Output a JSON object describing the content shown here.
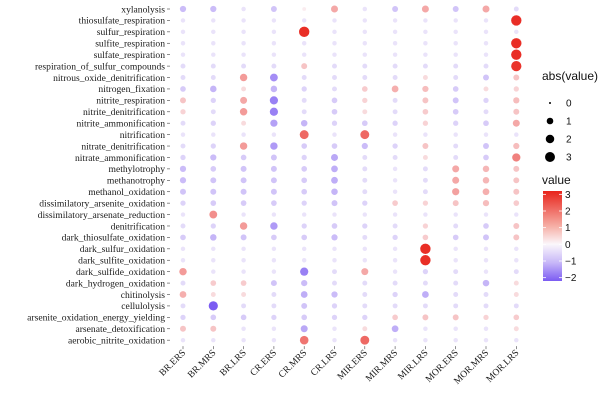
{
  "chart_data": {
    "type": "scatter",
    "subtype": "dot-matrix",
    "rows": [
      "xylanolysis",
      "thiosulfate_respiration",
      "sulfur_respiration",
      "sulfite_respiration",
      "sulfate_respiration",
      "respiration_of_sulfur_compounds",
      "nitrous_oxide_denitrification",
      "nitrogen_fixation",
      "nitrite_respiration",
      "nitrite_denitrification",
      "nitrite_ammonification",
      "nitrification",
      "nitrate_denitrification",
      "nitrate_ammonification",
      "methylotrophy",
      "methanotrophy",
      "methanol_oxidation",
      "dissimilatory_arsenite_oxidation",
      "dissimilatory_arsenate_reduction",
      "denitrification",
      "dark_thiosulfate_oxidation",
      "dark_sulfur_oxidation",
      "dark_sulfite_oxidation",
      "dark_sulfide_oxidation",
      "dark_hydrogen_oxidation",
      "chitinolysis",
      "cellulolysis",
      "arsenite_oxidation_energy_yielding",
      "arsenate_detoxification",
      "aerobic_nitrite_oxidation"
    ],
    "columns": [
      "BR.ERS",
      "BR.MRS",
      "BR.LRS",
      "CR.ERS",
      "CR.MRS",
      "CR.LRS",
      "MIR.ERS",
      "MIR.MRS",
      "MIR.LRS",
      "MOR.ERS",
      "MOR.MRS",
      "MOR.LRS"
    ],
    "values": [
      [
        -0.7,
        -0.7,
        -0.2,
        -0.6,
        0.1,
        1.0,
        -0.2,
        -0.6,
        1.0,
        -0.6,
        1.0,
        -0.3
      ],
      [
        -0.2,
        -0.2,
        -0.2,
        -0.2,
        -0.2,
        -0.2,
        -0.2,
        -0.2,
        -0.2,
        -0.2,
        -0.2,
        3.0
      ],
      [
        -0.2,
        -0.2,
        -0.2,
        -0.2,
        3.0,
        -0.2,
        -0.2,
        -0.2,
        -0.2,
        -0.2,
        -0.2,
        -0.2
      ],
      [
        -0.2,
        -0.2,
        -0.2,
        -0.2,
        -0.2,
        -0.2,
        -0.2,
        -0.2,
        -0.2,
        -0.2,
        -0.2,
        3.0
      ],
      [
        -0.2,
        -0.2,
        -0.2,
        -0.2,
        -0.2,
        -0.2,
        -0.2,
        -0.2,
        -0.2,
        -0.2,
        -0.2,
        3.0
      ],
      [
        -0.3,
        -0.3,
        -0.3,
        -0.3,
        0.6,
        -0.3,
        -0.3,
        -0.3,
        -0.3,
        -0.3,
        -0.3,
        2.9
      ],
      [
        -0.3,
        -0.3,
        1.2,
        -1.4,
        -0.3,
        -0.3,
        -0.3,
        -0.3,
        0.3,
        -0.3,
        -0.6,
        0.6
      ],
      [
        -0.5,
        -0.8,
        0.3,
        -0.8,
        -0.4,
        -0.3,
        0.5,
        0.9,
        0.7,
        -0.5,
        0.3,
        0.4
      ],
      [
        0.6,
        -0.4,
        1.0,
        -1.6,
        -0.3,
        -0.5,
        0.4,
        -0.3,
        0.6,
        -0.6,
        -0.4,
        0.7
      ],
      [
        0.4,
        -0.3,
        1.2,
        -1.6,
        -0.3,
        -0.5,
        0.3,
        -0.3,
        0.5,
        -0.5,
        -0.3,
        0.6
      ],
      [
        -0.3,
        -0.4,
        0.3,
        -1.1,
        -0.8,
        -0.4,
        -0.5,
        -0.4,
        0.4,
        -0.4,
        -0.5,
        1.0
      ],
      [
        -0.2,
        -0.2,
        -0.2,
        -0.2,
        2.0,
        -0.2,
        2.0,
        -0.2,
        -0.2,
        -0.2,
        -0.2,
        -0.2
      ],
      [
        -0.3,
        -0.4,
        1.2,
        -1.2,
        -0.5,
        -0.5,
        -0.7,
        -0.4,
        0.6,
        -0.3,
        -0.6,
        0.7
      ],
      [
        -0.4,
        -0.7,
        -0.5,
        -0.6,
        -0.4,
        -1.0,
        -0.3,
        -0.3,
        0.3,
        -0.3,
        -0.5,
        1.6
      ],
      [
        -0.7,
        -0.5,
        -0.6,
        -0.6,
        -0.5,
        -0.9,
        -0.3,
        -0.2,
        -0.3,
        1.0,
        0.8,
        0.6
      ],
      [
        -0.7,
        -0.6,
        -0.6,
        -0.6,
        -0.5,
        -0.9,
        -0.3,
        -0.2,
        -0.3,
        1.0,
        0.8,
        0.6
      ],
      [
        -0.6,
        -0.6,
        -0.6,
        -0.6,
        -0.5,
        -0.8,
        -0.3,
        -0.2,
        -0.3,
        1.1,
        0.9,
        0.6
      ],
      [
        -0.4,
        -0.5,
        -0.5,
        -0.5,
        -0.4,
        -0.6,
        -0.4,
        0.5,
        0.4,
        0.6,
        0.7,
        0.5
      ],
      [
        -0.2,
        1.4,
        -0.2,
        -0.2,
        -0.2,
        -0.2,
        -0.2,
        -0.2,
        -0.2,
        -0.2,
        -0.2,
        -0.2
      ],
      [
        -0.3,
        -0.4,
        1.2,
        -1.2,
        -0.4,
        -0.5,
        -0.4,
        -0.3,
        0.4,
        -0.3,
        -0.5,
        0.6
      ],
      [
        -0.5,
        -0.8,
        -0.6,
        -0.5,
        -0.5,
        -0.7,
        -0.3,
        -0.4,
        0.5,
        -0.5,
        -0.6,
        0.6
      ],
      [
        -0.2,
        -0.2,
        -0.2,
        -0.2,
        -0.2,
        -0.2,
        -0.2,
        -0.2,
        3.0,
        -0.2,
        -0.2,
        -0.2
      ],
      [
        -0.2,
        -0.2,
        -0.2,
        -0.2,
        -0.2,
        -0.2,
        -0.2,
        -0.2,
        3.0,
        -0.2,
        -0.2,
        -0.2
      ],
      [
        1.2,
        -0.2,
        -0.2,
        -0.2,
        -1.6,
        -0.3,
        1.0,
        -0.2,
        -0.4,
        -0.3,
        -0.2,
        -0.3
      ],
      [
        -0.3,
        0.5,
        0.5,
        -0.6,
        -0.7,
        -0.3,
        -0.3,
        -0.3,
        -0.3,
        -0.3,
        -0.8,
        0.3
      ],
      [
        0.9,
        0.3,
        0.3,
        -0.3,
        -0.9,
        -0.7,
        -0.3,
        -0.4,
        -0.9,
        -0.3,
        -0.3,
        0.3
      ],
      [
        -0.3,
        -2.2,
        -0.3,
        -0.3,
        -0.6,
        -0.4,
        -0.3,
        -0.3,
        -0.3,
        -0.3,
        -0.3,
        -0.3
      ],
      [
        -0.4,
        -0.5,
        -0.5,
        -0.4,
        -0.5,
        -0.4,
        -0.4,
        0.5,
        0.6,
        0.6,
        0.4,
        0.5
      ],
      [
        0.6,
        0.6,
        -0.2,
        -0.2,
        -1.0,
        -0.2,
        0.3,
        -0.9,
        -0.2,
        -0.2,
        -0.2,
        0.3
      ],
      [
        -0.2,
        -0.2,
        -0.2,
        -0.2,
        1.8,
        -0.2,
        2.0,
        -0.2,
        -0.2,
        -0.2,
        -0.2,
        -0.2
      ]
    ],
    "size_legend": {
      "title": "abs(value)",
      "breaks": [
        0,
        1,
        2,
        3
      ]
    },
    "color_legend": {
      "title": "value",
      "ticks": [
        3,
        2,
        1,
        0,
        -1,
        -2
      ],
      "range": [
        -2.2,
        3.2
      ]
    },
    "colors": {
      "high": "#e8231a",
      "mid": "#fbf7fb",
      "low": "#7b5cf2"
    },
    "grid": false
  }
}
